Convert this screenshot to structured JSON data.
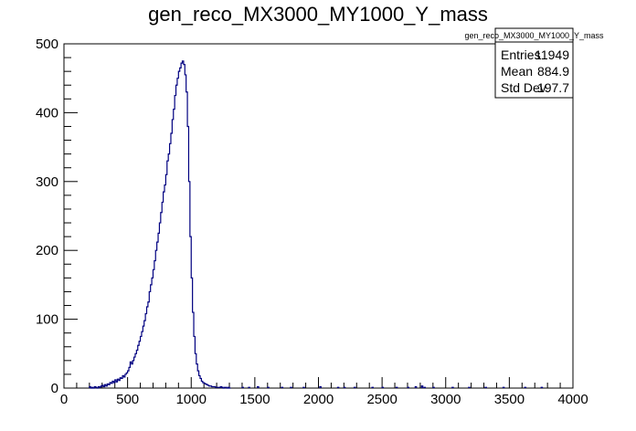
{
  "chart_data": {
    "type": "histogram",
    "title": "gen_reco_MX3000_MY1000_Y_mass",
    "xlabel": "",
    "ylabel": "",
    "xlim": [
      0,
      4000
    ],
    "ylim": [
      0,
      500
    ],
    "bin_width": 10,
    "line_color": "#000080",
    "x_ticks": [
      0,
      500,
      1000,
      1500,
      2000,
      2500,
      3000,
      3500,
      4000
    ],
    "y_ticks": [
      0,
      100,
      200,
      300,
      400,
      500
    ],
    "x_tick_labels": [
      "0",
      "500",
      "1000",
      "1500",
      "2000",
      "2500",
      "3000",
      "3500",
      "4000"
    ],
    "y_tick_labels": [
      "0",
      "100",
      "200",
      "300",
      "400",
      "500"
    ],
    "bin_lows": [
      200,
      210,
      220,
      230,
      240,
      250,
      260,
      270,
      280,
      290,
      300,
      310,
      320,
      330,
      340,
      350,
      360,
      370,
      380,
      390,
      400,
      410,
      420,
      430,
      440,
      450,
      460,
      470,
      480,
      490,
      500,
      510,
      520,
      530,
      540,
      550,
      560,
      570,
      580,
      590,
      600,
      610,
      620,
      630,
      640,
      650,
      660,
      670,
      680,
      690,
      700,
      710,
      720,
      730,
      740,
      750,
      760,
      770,
      780,
      790,
      800,
      810,
      820,
      830,
      840,
      850,
      860,
      870,
      880,
      890,
      900,
      910,
      920,
      930,
      940,
      950,
      960,
      970,
      980,
      990,
      1000,
      1010,
      1020,
      1030,
      1040,
      1050,
      1060,
      1070,
      1080,
      1090,
      1100,
      1110,
      1120,
      1130,
      1140,
      1150,
      1160,
      1170,
      1180,
      1190,
      1200,
      1210,
      1220,
      1230,
      1240,
      1250,
      1260,
      1270,
      1280,
      1290,
      1300
    ],
    "counts": [
      2,
      0,
      1,
      0,
      2,
      1,
      0,
      2,
      1,
      3,
      4,
      2,
      5,
      3,
      6,
      5,
      8,
      7,
      10,
      8,
      12,
      9,
      13,
      11,
      15,
      14,
      18,
      16,
      20,
      22,
      25,
      30,
      38,
      35,
      40,
      45,
      50,
      55,
      62,
      68,
      75,
      82,
      90,
      98,
      108,
      118,
      125,
      140,
      150,
      160,
      172,
      185,
      200,
      212,
      225,
      240,
      255,
      270,
      285,
      295,
      310,
      330,
      340,
      355,
      370,
      390,
      405,
      425,
      440,
      450,
      460,
      465,
      472,
      475,
      470,
      455,
      430,
      380,
      300,
      220,
      160,
      110,
      75,
      50,
      35,
      25,
      18,
      14,
      10,
      8,
      7,
      6,
      5,
      4,
      3,
      3,
      2,
      2,
      2,
      1,
      1,
      1,
      1,
      2,
      1,
      0,
      1,
      1,
      0,
      1,
      0
    ],
    "sparse_bins": {
      "x": [
        1400,
        1450,
        1520,
        1600,
        1710,
        1780,
        1880,
        2010,
        2150,
        2200,
        2280,
        2420,
        2500,
        2610,
        2700,
        2760,
        2810,
        2830,
        2900,
        3050,
        3180,
        3310,
        3450,
        3620,
        3750
      ],
      "counts": [
        1,
        1,
        2,
        1,
        1,
        1,
        1,
        2,
        1,
        1,
        1,
        1,
        1,
        1,
        1,
        2,
        3,
        1,
        1,
        1,
        1,
        1,
        1,
        1,
        1
      ]
    },
    "stats": {
      "name": "gen_reco_MX3000_MY1000_Y_mass",
      "rows": [
        {
          "label": "Entries",
          "value": "11949"
        },
        {
          "label": "Mean",
          "value": "884.9"
        },
        {
          "label": "Std Dev",
          "value": "197.7"
        }
      ]
    }
  }
}
